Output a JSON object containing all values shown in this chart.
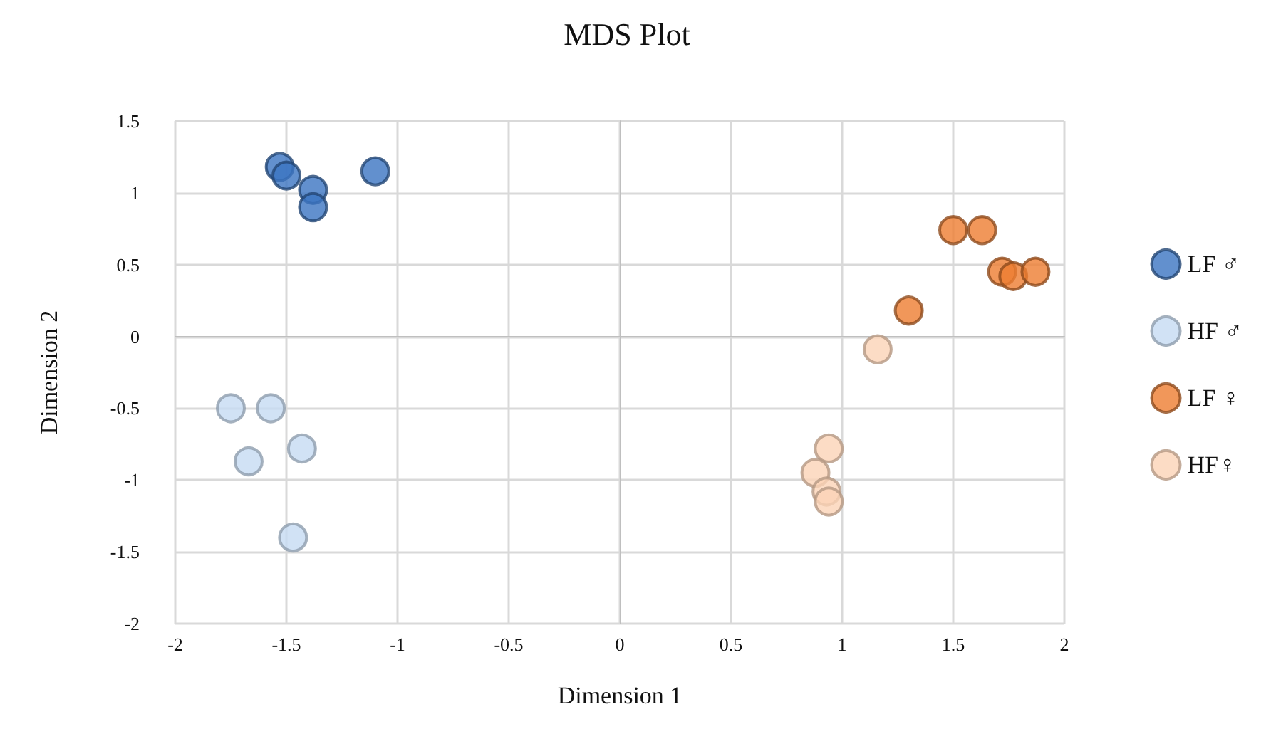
{
  "chart_data": {
    "type": "scatter",
    "title": "MDS Plot",
    "xlabel": "Dimension 1",
    "ylabel": "Dimension 2",
    "xlim": [
      -2,
      2
    ],
    "xticks": [
      -2,
      -1.5,
      -1,
      -0.5,
      0,
      0.5,
      1,
      1.5,
      2
    ],
    "ylim": [
      -2,
      1.5
    ],
    "yticks": [
      -2,
      -1.5,
      -1,
      -0.5,
      0,
      0.5,
      1,
      1.5
    ],
    "grid": true,
    "legend": "right",
    "marker": "circle",
    "series": [
      {
        "name": "LF ♂",
        "color": "#3b74c2",
        "x": [
          -1.53,
          -1.5,
          -1.38,
          -1.38,
          -1.1
        ],
        "values": [
          1.18,
          1.12,
          1.02,
          0.9,
          1.15
        ]
      },
      {
        "name": "HF ♂",
        "color": "#c6dbf2",
        "x": [
          -1.75,
          -1.57,
          -1.67,
          -1.43,
          -1.47
        ],
        "values": [
          -0.5,
          -0.5,
          -0.87,
          -0.78,
          -1.4
        ]
      },
      {
        "name": "LF ♀",
        "color": "#ed7d31",
        "x": [
          1.5,
          1.63,
          1.72,
          1.77,
          1.87,
          1.3
        ],
        "values": [
          0.74,
          0.74,
          0.45,
          0.42,
          0.45,
          0.18
        ]
      },
      {
        "name": "HF♀",
        "color": "#fbd3b6",
        "x": [
          1.16,
          0.94,
          0.88,
          0.93,
          0.94
        ],
        "values": [
          -0.09,
          -0.78,
          -0.95,
          -1.08,
          -1.15
        ]
      }
    ]
  }
}
